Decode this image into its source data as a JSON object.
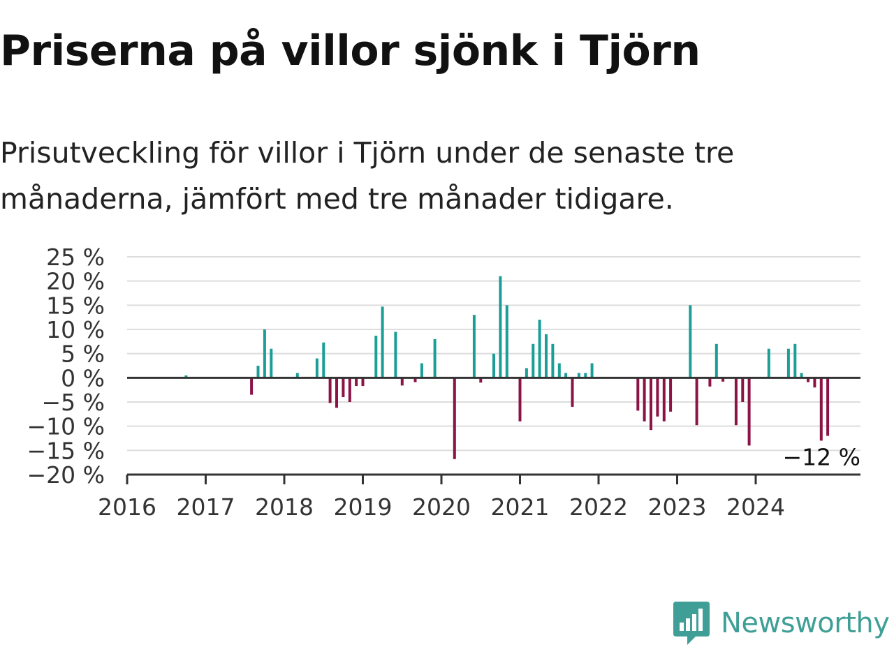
{
  "header": {
    "title": "Priserna på villor sjönk i Tjörn",
    "subtitle": "Prisutveckling för villor i Tjörn under de senaste tre månaderna, jämfört med tre månader tidigare."
  },
  "brand": {
    "name": "Newsworthy",
    "color": "#3f9f96",
    "icon": "newsworthy-bar-chart-icon"
  },
  "colors": {
    "positive": "#1a9e96",
    "negative": "#8c1346",
    "grid": "#dddddd",
    "axis": "#333333"
  },
  "chart_data": {
    "type": "bar",
    "title": "Priserna på villor sjönk i Tjörn",
    "subtitle": "Prisutveckling för villor i Tjörn under de senaste tre månaderna, jämfört med tre månader tidigare.",
    "xlabel": "",
    "ylabel": "",
    "ylim": [
      -20,
      25
    ],
    "yticks": [
      25,
      20,
      15,
      10,
      5,
      0,
      -5,
      -10,
      -15,
      -20
    ],
    "ytick_labels": [
      "25 %",
      "20 %",
      "15 %",
      "10 %",
      "5 %",
      "0 %",
      "−5 %",
      "−10 %",
      "−15 %",
      "−20 %"
    ],
    "xlim": [
      "2016-01",
      "2025-05"
    ],
    "xtick_labels": [
      "2016",
      "2017",
      "2018",
      "2019",
      "2020",
      "2021",
      "2022",
      "2023",
      "2024"
    ],
    "grid": true,
    "last_value_label": "−12 %",
    "unit": "%",
    "x": [
      "2016-10",
      "2017-08",
      "2017-09",
      "2017-10",
      "2017-11",
      "2018-03",
      "2018-06",
      "2018-07",
      "2018-08",
      "2018-09",
      "2018-10",
      "2018-11",
      "2018-12",
      "2019-01",
      "2019-03",
      "2019-04",
      "2019-06",
      "2019-07",
      "2019-09",
      "2019-10",
      "2019-12",
      "2020-03",
      "2020-06",
      "2020-07",
      "2020-09",
      "2020-10",
      "2020-11",
      "2021-01",
      "2021-02",
      "2021-03",
      "2021-04",
      "2021-05",
      "2021-06",
      "2021-07",
      "2021-08",
      "2021-09",
      "2021-10",
      "2021-11",
      "2021-12",
      "2022-07",
      "2022-08",
      "2022-09",
      "2022-10",
      "2022-11",
      "2022-12",
      "2023-03",
      "2023-04",
      "2023-06",
      "2023-07",
      "2023-08",
      "2023-10",
      "2023-11",
      "2023-12",
      "2024-03",
      "2024-06",
      "2024-07",
      "2024-08",
      "2024-09",
      "2024-10",
      "2024-11",
      "2024-12"
    ],
    "values": [
      0.5,
      -3.5,
      2.5,
      10,
      6,
      1,
      4,
      7.3,
      -5.2,
      -6.2,
      -4,
      -5,
      -1.7,
      -1.7,
      8.7,
      14.7,
      9.5,
      -1.6,
      -0.9,
      3,
      8,
      -16.8,
      13,
      -1,
      5,
      21,
      15,
      -9,
      2,
      7,
      12,
      9,
      7,
      3,
      1,
      -6,
      1,
      1,
      3,
      -6.8,
      -9,
      -10.8,
      -8,
      -9,
      -7,
      15,
      -9.8,
      -1.8,
      7,
      -0.8,
      -9.8,
      -5,
      -14,
      6,
      6,
      7,
      1,
      -0.9,
      -2,
      -13,
      -12
    ]
  }
}
